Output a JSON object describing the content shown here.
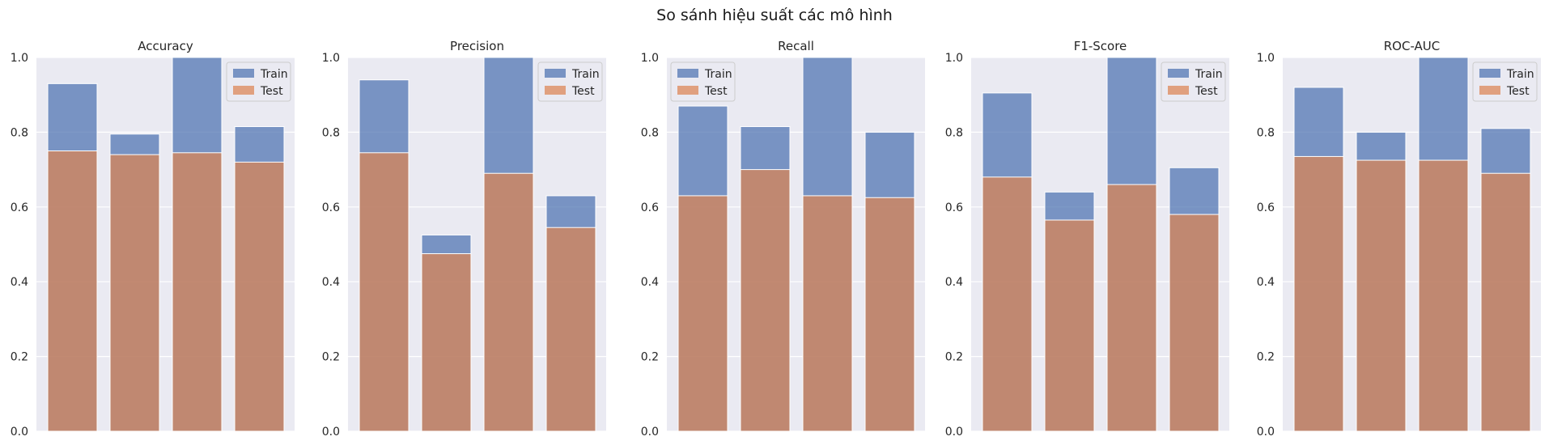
{
  "figure": {
    "suptitle": "So sánh hiệu suất các mô hình"
  },
  "colors": {
    "train": "#4c72b0",
    "test": "#dd8452",
    "panel_bg": "#eaeaf2",
    "grid": "#ffffff",
    "text": "#262626"
  },
  "chart_data": [
    {
      "type": "bar",
      "title": "Accuracy",
      "ylim": [
        0,
        1
      ],
      "yticks": [
        "0.0",
        "0.2",
        "0.4",
        "0.6",
        "0.8",
        "1.0"
      ],
      "legend_position": "top-right",
      "series": [
        {
          "name": "Train",
          "values": [
            0.93,
            0.795,
            1.0,
            0.815
          ]
        },
        {
          "name": "Test",
          "values": [
            0.75,
            0.74,
            0.745,
            0.72
          ]
        }
      ]
    },
    {
      "type": "bar",
      "title": "Precision",
      "ylim": [
        0,
        1
      ],
      "yticks": [
        "0.0",
        "0.2",
        "0.4",
        "0.6",
        "0.8",
        "1.0"
      ],
      "legend_position": "top-right",
      "series": [
        {
          "name": "Train",
          "values": [
            0.94,
            0.525,
            1.0,
            0.63
          ]
        },
        {
          "name": "Test",
          "values": [
            0.745,
            0.475,
            0.69,
            0.545
          ]
        }
      ]
    },
    {
      "type": "bar",
      "title": "Recall",
      "ylim": [
        0,
        1
      ],
      "yticks": [
        "0.0",
        "0.2",
        "0.4",
        "0.6",
        "0.8",
        "1.0"
      ],
      "legend_position": "top-left",
      "series": [
        {
          "name": "Train",
          "values": [
            0.87,
            0.815,
            1.0,
            0.8
          ]
        },
        {
          "name": "Test",
          "values": [
            0.63,
            0.7,
            0.63,
            0.625
          ]
        }
      ]
    },
    {
      "type": "bar",
      "title": "F1-Score",
      "ylim": [
        0,
        1
      ],
      "yticks": [
        "0.0",
        "0.2",
        "0.4",
        "0.6",
        "0.8",
        "1.0"
      ],
      "legend_position": "top-right",
      "series": [
        {
          "name": "Train",
          "values": [
            0.905,
            0.64,
            1.0,
            0.705
          ]
        },
        {
          "name": "Test",
          "values": [
            0.68,
            0.565,
            0.66,
            0.58
          ]
        }
      ]
    },
    {
      "type": "bar",
      "title": "ROC-AUC",
      "ylim": [
        0,
        1
      ],
      "yticks": [
        "0.0",
        "0.2",
        "0.4",
        "0.6",
        "0.8",
        "1.0"
      ],
      "legend_position": "top-right",
      "series": [
        {
          "name": "Train",
          "values": [
            0.92,
            0.8,
            1.0,
            0.81
          ]
        },
        {
          "name": "Test",
          "values": [
            0.735,
            0.725,
            0.725,
            0.69
          ]
        }
      ]
    }
  ]
}
